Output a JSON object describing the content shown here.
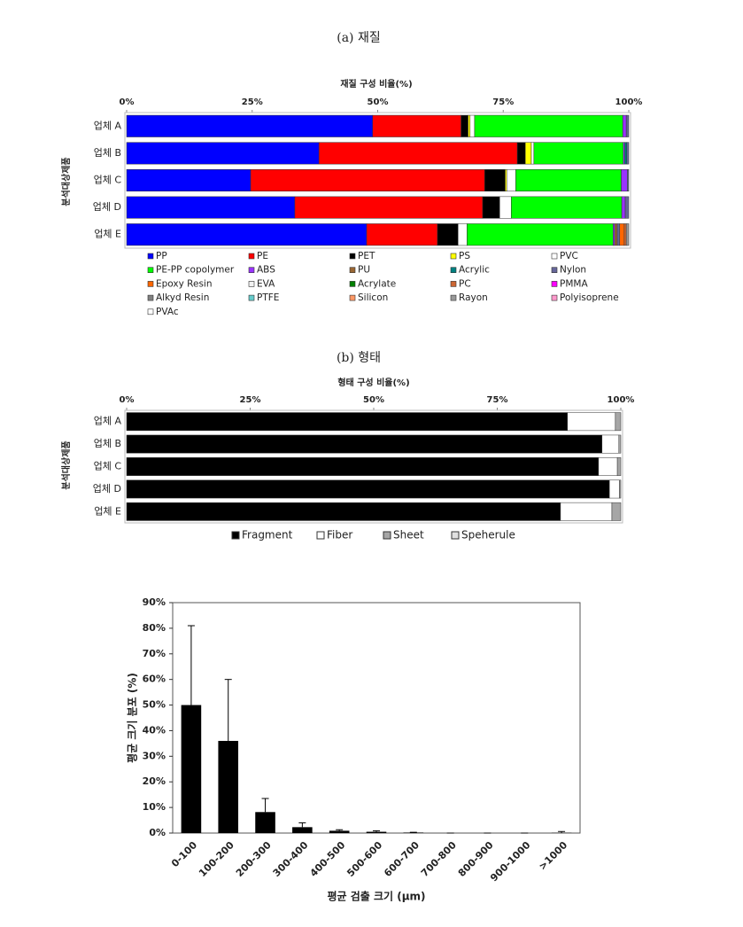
{
  "chart_data": [
    {
      "type": "stackedbar",
      "caption": "(a) 재질",
      "title": "재질 구성 비율(%)",
      "y_label": "분석대상제품",
      "categories": [
        "업체 A",
        "업체 B",
        "업체 C",
        "업체 D",
        "업체 E"
      ],
      "xlim": [
        0,
        100
      ],
      "xticks": [
        {
          "value": 0,
          "label": "0%"
        },
        {
          "value": 25,
          "label": "25%"
        },
        {
          "value": 50,
          "label": "50%"
        },
        {
          "value": 75,
          "label": "75%"
        },
        {
          "value": 100,
          "label": "100%"
        }
      ],
      "series": [
        {
          "name": "PP",
          "color": "#0000ff",
          "values": [
            49.0,
            38.3,
            24.7,
            33.5,
            47.8
          ]
        },
        {
          "name": "PE",
          "color": "#ff0000",
          "values": [
            17.6,
            39.5,
            46.6,
            37.4,
            14.1
          ]
        },
        {
          "name": "PET",
          "color": "#000000",
          "values": [
            1.4,
            1.6,
            4.1,
            3.4,
            4.1
          ]
        },
        {
          "name": "PS",
          "color": "#ffff00",
          "values": [
            0.4,
            1.2,
            0.3,
            0,
            0
          ]
        },
        {
          "name": "PVC",
          "color": "#ffffff",
          "values": [
            0.9,
            0.5,
            1.8,
            2.3,
            1.8
          ]
        },
        {
          "name": "PE-PP copolymer",
          "color": "#00ff00",
          "values": [
            29.5,
            17.8,
            21.0,
            22.0,
            29.1
          ]
        },
        {
          "name": "ABS",
          "color": "#9933ff",
          "values": [
            0.7,
            0.3,
            1.2,
            0.7,
            0.3
          ]
        },
        {
          "name": "PU",
          "color": "#996633",
          "values": [
            0,
            0,
            0,
            0,
            0.5
          ]
        },
        {
          "name": "Acrylic",
          "color": "#008080",
          "values": [
            0,
            0.4,
            0,
            0,
            0
          ]
        },
        {
          "name": "Nylon",
          "color": "#666699",
          "values": [
            0.5,
            0.4,
            0.3,
            0.7,
            0.5
          ]
        },
        {
          "name": "Epoxy Resin",
          "color": "#ff6600",
          "values": [
            0,
            0,
            0,
            0,
            0.9
          ]
        },
        {
          "name": "EVA",
          "color": "#f2f2f2",
          "values": [
            0,
            0,
            0,
            0,
            0
          ]
        },
        {
          "name": "Acrylate",
          "color": "#008000",
          "values": [
            0,
            0,
            0,
            0,
            0
          ]
        },
        {
          "name": "PC",
          "color": "#cc6633",
          "values": [
            0,
            0,
            0,
            0,
            0.4
          ]
        },
        {
          "name": "PMMA",
          "color": "#ff00ff",
          "values": [
            0,
            0,
            0,
            0,
            0
          ]
        },
        {
          "name": "Alkyd Resin",
          "color": "#808080",
          "values": [
            0,
            0,
            0,
            0,
            0
          ]
        },
        {
          "name": "PTFE",
          "color": "#66cccc",
          "values": [
            0,
            0,
            0,
            0,
            0
          ]
        },
        {
          "name": "Silicon",
          "color": "#ff9966",
          "values": [
            0,
            0,
            0,
            0,
            0
          ]
        },
        {
          "name": "Rayon",
          "color": "#999999",
          "values": [
            0,
            0,
            0,
            0,
            0.5
          ]
        },
        {
          "name": "Polyisoprene",
          "color": "#ff99cc",
          "values": [
            0,
            0,
            0,
            0,
            0
          ]
        },
        {
          "name": "PVAc",
          "color": "#ffffff",
          "values": [
            0,
            0,
            0,
            0,
            0
          ]
        }
      ]
    },
    {
      "type": "stackedbar",
      "caption": "(b) 형태",
      "title": "형태 구성 비율(%)",
      "y_label": "분석대상제품",
      "categories": [
        "업체 A",
        "업체 B",
        "업체 C",
        "업체 D",
        "업체 E"
      ],
      "xlim": [
        0,
        100
      ],
      "xticks": [
        {
          "value": 0,
          "label": "0%"
        },
        {
          "value": 25,
          "label": "25%"
        },
        {
          "value": 50,
          "label": "50%"
        },
        {
          "value": 75,
          "label": "75%"
        },
        {
          "value": 100,
          "label": "100%"
        }
      ],
      "series": [
        {
          "name": "Fragment",
          "color": "#000000",
          "values": [
            89.2,
            96.2,
            95.5,
            97.7,
            87.8
          ]
        },
        {
          "name": "Fiber",
          "color": "#ffffff",
          "values": [
            9.7,
            3.4,
            3.8,
            2.0,
            10.4
          ]
        },
        {
          "name": "Sheet",
          "color": "#a6a6a6",
          "values": [
            1.1,
            0.4,
            0.7,
            0.3,
            1.8
          ]
        },
        {
          "name": "Speherule",
          "color": "#e0e0e0",
          "values": [
            0,
            0,
            0,
            0,
            0
          ]
        }
      ]
    },
    {
      "type": "bar",
      "x_label": "평균 검출 크기 (μm)",
      "y_label": "평균 크기 분포 (%)",
      "categories": [
        "0-100",
        "100-200",
        "200-300",
        "300-400",
        "400-500",
        "500-600",
        "600-700",
        "700-800",
        "800-900",
        "900-1000",
        ">1000"
      ],
      "values": [
        50,
        36,
        8.2,
        2.3,
        0.9,
        0.5,
        0.2,
        0,
        0,
        0,
        0.1
      ],
      "errors": [
        31,
        24,
        5.3,
        1.7,
        0.4,
        0.4,
        0.1,
        0,
        0,
        0,
        0.5
      ],
      "color": "#000000",
      "ylim": [
        0,
        90
      ],
      "yticks": [
        {
          "value": 0,
          "label": "0%"
        },
        {
          "value": 10,
          "label": "10%"
        },
        {
          "value": 20,
          "label": "20%"
        },
        {
          "value": 30,
          "label": "30%"
        },
        {
          "value": 40,
          "label": "40%"
        },
        {
          "value": 50,
          "label": "50%"
        },
        {
          "value": 60,
          "label": "60%"
        },
        {
          "value": 70,
          "label": "70%"
        },
        {
          "value": 80,
          "label": "80%"
        },
        {
          "value": 90,
          "label": "90%"
        }
      ]
    }
  ]
}
